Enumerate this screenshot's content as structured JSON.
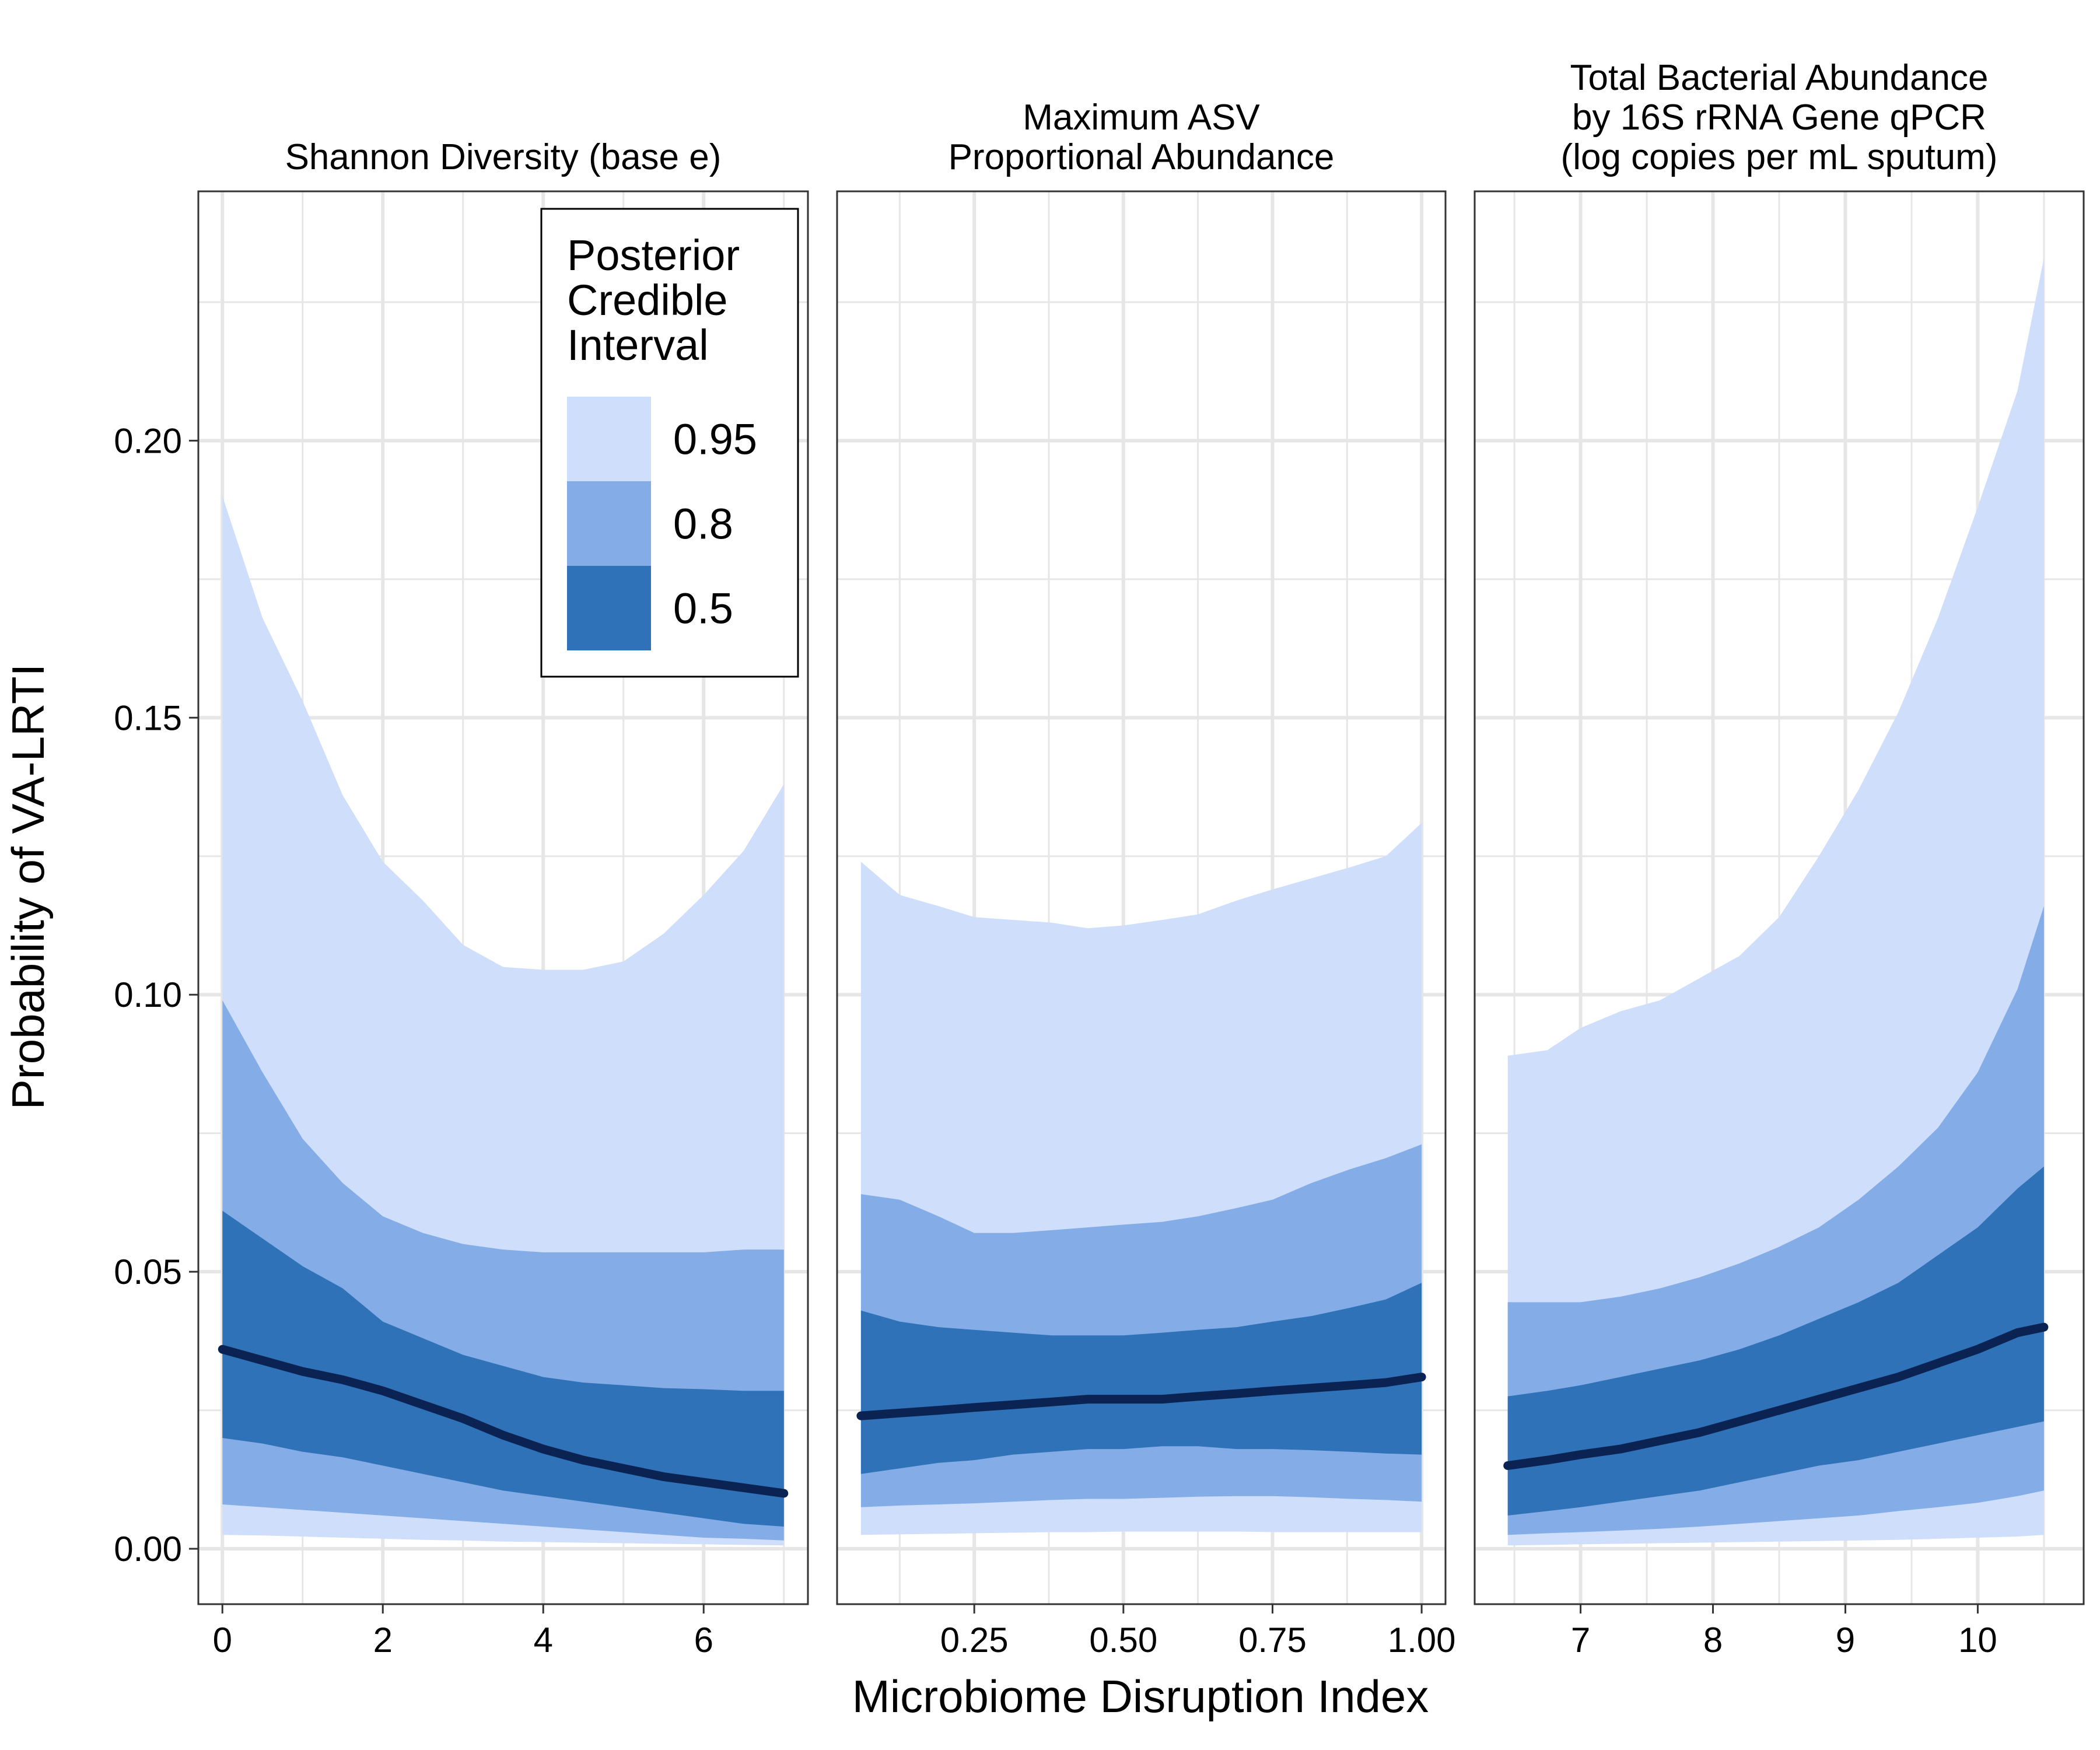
{
  "chart_data": {
    "type": "area",
    "ylabel": "Probability of VA-LRTI",
    "xlabel": "Microbiome Disruption Index",
    "ylim": [
      -0.01,
      0.245
    ],
    "y_ticks": [
      0.0,
      0.05,
      0.1,
      0.15,
      0.2
    ],
    "y_tick_labels": [
      "0.00",
      "0.05",
      "0.10",
      "0.15",
      "0.20"
    ],
    "grid": true,
    "facet_layout": "1x3",
    "legend": {
      "title_lines": [
        "Posterior",
        "Credible",
        "Interval"
      ],
      "placement": "top-right inside first panel",
      "entries": [
        {
          "label": "0.95",
          "color": "#cfdffb"
        },
        {
          "label": "0.8",
          "color": "#84ace6"
        },
        {
          "label": "0.5",
          "color": "#2f72b7"
        }
      ]
    },
    "colors": {
      "band_95": "#cfdffb",
      "band_80": "#84ace6",
      "band_50": "#2f72b7",
      "median": "#0b2352",
      "grid": "#e6e6e6",
      "panel_border": "#333333"
    },
    "panels": [
      {
        "title_lines": [
          "Shannon Diversity (base e)"
        ],
        "xlim": [
          -0.3,
          7.3
        ],
        "x_ticks": [
          0,
          2,
          4,
          6
        ],
        "x_tick_labels": [
          "0",
          "2",
          "4",
          "6"
        ],
        "x": [
          0,
          0.5,
          1,
          1.5,
          2,
          2.5,
          3,
          3.5,
          4,
          4.5,
          5,
          5.5,
          6,
          6.5,
          7
        ],
        "median": [
          0.036,
          0.034,
          0.032,
          0.0305,
          0.0285,
          0.026,
          0.0235,
          0.0205,
          0.018,
          0.016,
          0.0145,
          0.013,
          0.012,
          0.011,
          0.01
        ],
        "lower_50": [
          0.02,
          0.019,
          0.0175,
          0.0165,
          0.015,
          0.0135,
          0.012,
          0.0105,
          0.0095,
          0.0085,
          0.0075,
          0.0065,
          0.0055,
          0.0045,
          0.004
        ],
        "upper_50": [
          0.061,
          0.056,
          0.051,
          0.047,
          0.041,
          0.038,
          0.035,
          0.033,
          0.031,
          0.03,
          0.0295,
          0.029,
          0.0288,
          0.0285,
          0.0285
        ],
        "lower_80": [
          0.008,
          0.0075,
          0.007,
          0.0065,
          0.006,
          0.0055,
          0.005,
          0.0045,
          0.004,
          0.0035,
          0.003,
          0.0025,
          0.002,
          0.0018,
          0.0015
        ],
        "upper_80": [
          0.099,
          0.086,
          0.074,
          0.066,
          0.06,
          0.057,
          0.055,
          0.054,
          0.0535,
          0.0535,
          0.0535,
          0.0535,
          0.0535,
          0.054,
          0.054
        ],
        "lower_95": [
          0.0025,
          0.0024,
          0.0022,
          0.002,
          0.0018,
          0.0016,
          0.0015,
          0.0013,
          0.0012,
          0.0011,
          0.001,
          0.0009,
          0.0008,
          0.0007,
          0.0006
        ],
        "upper_95": [
          0.19,
          0.168,
          0.153,
          0.136,
          0.124,
          0.117,
          0.109,
          0.105,
          0.1045,
          0.1045,
          0.106,
          0.111,
          0.118,
          0.126,
          0.138
        ]
      },
      {
        "title_lines": [
          "Maximum ASV",
          "Proportional Abundance"
        ],
        "xlim": [
          0.02,
          1.04
        ],
        "x_ticks": [
          0.25,
          0.5,
          0.75,
          1.0
        ],
        "x_tick_labels": [
          "0.25",
          "0.50",
          "0.75",
          "1.00"
        ],
        "x": [
          0.06,
          0.125,
          0.19,
          0.25,
          0.315,
          0.38,
          0.44,
          0.5,
          0.565,
          0.625,
          0.69,
          0.75,
          0.815,
          0.88,
          0.94,
          1.0
        ],
        "median": [
          0.024,
          0.0245,
          0.025,
          0.0255,
          0.026,
          0.0265,
          0.027,
          0.027,
          0.027,
          0.0275,
          0.028,
          0.0285,
          0.029,
          0.0295,
          0.03,
          0.031
        ],
        "lower_50": [
          0.0135,
          0.0145,
          0.0155,
          0.016,
          0.017,
          0.0175,
          0.018,
          0.018,
          0.0185,
          0.0185,
          0.018,
          0.018,
          0.0178,
          0.0175,
          0.0172,
          0.017
        ],
        "upper_50": [
          0.043,
          0.041,
          0.04,
          0.0395,
          0.039,
          0.0385,
          0.0385,
          0.0385,
          0.039,
          0.0395,
          0.04,
          0.041,
          0.042,
          0.0435,
          0.045,
          0.048
        ],
        "lower_80": [
          0.0075,
          0.0078,
          0.008,
          0.0082,
          0.0085,
          0.0088,
          0.009,
          0.009,
          0.0092,
          0.0094,
          0.0095,
          0.0095,
          0.0093,
          0.009,
          0.0088,
          0.0085
        ],
        "upper_80": [
          0.064,
          0.063,
          0.06,
          0.057,
          0.057,
          0.0575,
          0.058,
          0.0585,
          0.059,
          0.06,
          0.0615,
          0.063,
          0.066,
          0.0685,
          0.0705,
          0.073
        ],
        "lower_95": [
          0.0025,
          0.0026,
          0.0027,
          0.0028,
          0.0029,
          0.003,
          0.003,
          0.0031,
          0.0031,
          0.0031,
          0.0031,
          0.003,
          0.003,
          0.003,
          0.003,
          0.003
        ],
        "upper_95": [
          0.124,
          0.118,
          0.116,
          0.114,
          0.1135,
          0.113,
          0.112,
          0.1125,
          0.1135,
          0.1145,
          0.117,
          0.119,
          0.121,
          0.123,
          0.125,
          0.131
        ]
      },
      {
        "title_lines": [
          "Total Bacterial Abundance",
          "by 16S rRNA Gene qPCR",
          "(log copies per mL sputum)"
        ],
        "xlim": [
          6.2,
          10.8
        ],
        "x_ticks": [
          7,
          8,
          9,
          10
        ],
        "x_tick_labels": [
          "7",
          "8",
          "9",
          "10"
        ],
        "x": [
          6.45,
          6.75,
          7.0,
          7.3,
          7.6,
          7.9,
          8.2,
          8.5,
          8.8,
          9.1,
          9.4,
          9.7,
          10.0,
          10.3,
          10.5
        ],
        "median": [
          0.015,
          0.016,
          0.017,
          0.018,
          0.0195,
          0.021,
          0.023,
          0.025,
          0.027,
          0.029,
          0.031,
          0.0335,
          0.036,
          0.039,
          0.04
        ],
        "lower_50": [
          0.006,
          0.0068,
          0.0075,
          0.0085,
          0.0095,
          0.0105,
          0.012,
          0.0135,
          0.015,
          0.016,
          0.0175,
          0.019,
          0.0205,
          0.022,
          0.023
        ],
        "upper_50": [
          0.0275,
          0.0285,
          0.0295,
          0.031,
          0.0325,
          0.034,
          0.036,
          0.0385,
          0.0415,
          0.0445,
          0.048,
          0.053,
          0.058,
          0.065,
          0.069
        ],
        "lower_80": [
          0.0025,
          0.0028,
          0.003,
          0.0033,
          0.0036,
          0.004,
          0.0045,
          0.005,
          0.0055,
          0.006,
          0.0068,
          0.0075,
          0.0083,
          0.0095,
          0.0105
        ],
        "upper_80": [
          0.0445,
          0.0445,
          0.0445,
          0.0455,
          0.047,
          0.049,
          0.0515,
          0.0545,
          0.058,
          0.063,
          0.069,
          0.076,
          0.086,
          0.101,
          0.116
        ],
        "lower_95": [
          0.0006,
          0.0007,
          0.0008,
          0.0009,
          0.001,
          0.0011,
          0.0012,
          0.0013,
          0.0014,
          0.0015,
          0.0016,
          0.0018,
          0.002,
          0.0022,
          0.0025
        ],
        "upper_95": [
          0.089,
          0.09,
          0.094,
          0.097,
          0.099,
          0.103,
          0.107,
          0.114,
          0.125,
          0.137,
          0.151,
          0.168,
          0.188,
          0.209,
          0.233
        ]
      }
    ]
  }
}
